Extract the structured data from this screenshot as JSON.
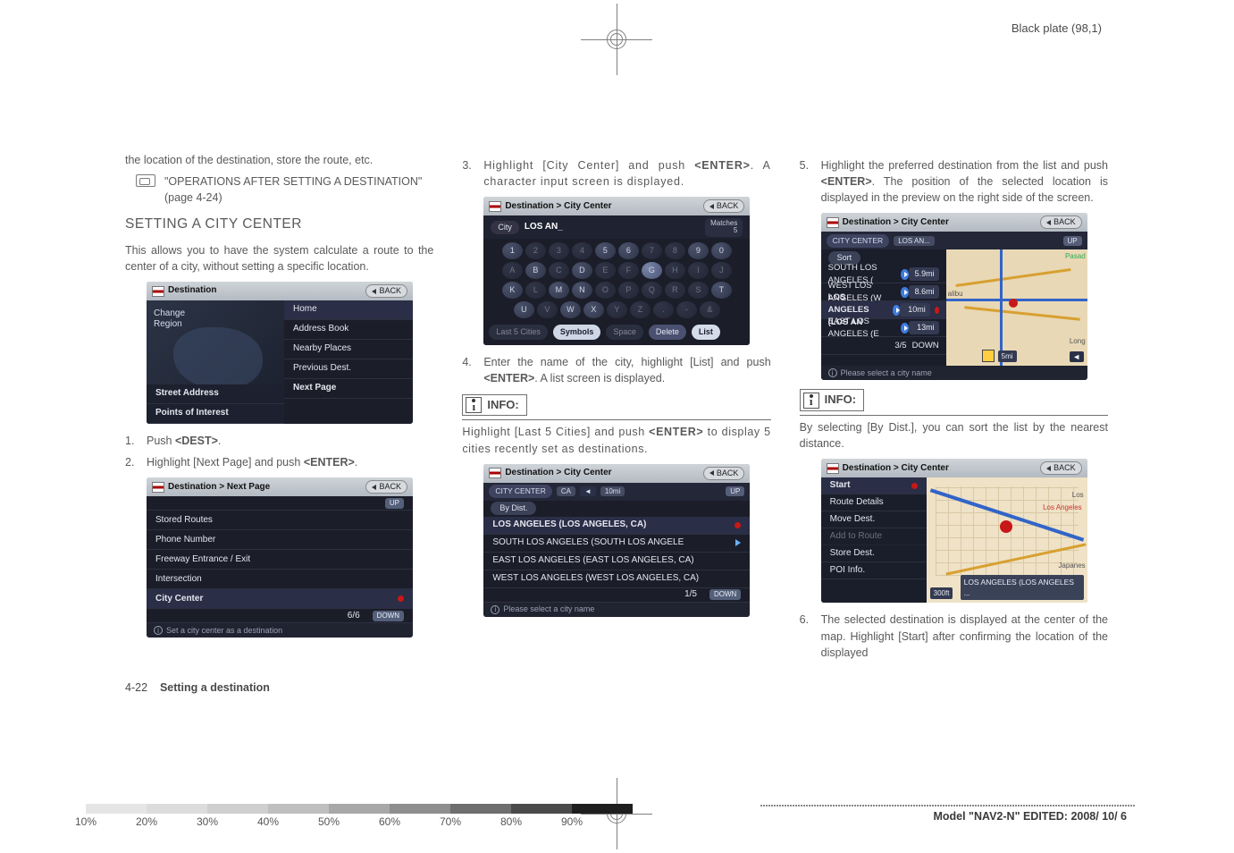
{
  "header": {
    "plate": "Black plate (98,1)"
  },
  "crop": {
    "reg_outer": 22,
    "reg_inner": 14
  },
  "col1": {
    "lead_para": "the location of the destination, store the route, etc.",
    "ref_text": "\"OPERATIONS AFTER SETTING A DESTINATION\" (page 4-24)",
    "h2": "SETTING A CITY CENTER",
    "intro": "This allows you to have the system calculate a route to the center of a city, without setting a specific location.",
    "ss1": {
      "title": "Destination",
      "back": "BACK",
      "left": {
        "change": "Change",
        "region": "Region"
      },
      "right": [
        "Home",
        "Address Book",
        "Nearby Places",
        "Previous Dest.",
        "Next Page"
      ],
      "left2": [
        "Street Address",
        "Points of Interest"
      ]
    },
    "step1": "Push <DEST>.",
    "step2": "Highlight [Next Page] and push <ENTER>.",
    "ss2": {
      "title": "Destination > Next Page",
      "back": "BACK",
      "up": "UP",
      "items": [
        "Stored Routes",
        "Phone Number",
        "Freeway Entrance / Exit",
        "Intersection",
        "City Center"
      ],
      "page": "6/6",
      "down": "DOWN",
      "hint": "Set a city center as a destination"
    }
  },
  "col2": {
    "step3": "Highlight [City Center] and push <ENTER>. A character input screen is displayed.",
    "ss3": {
      "title": "Destination > City Center",
      "back": "BACK",
      "city_lbl": "City",
      "city_val": "LOS AN_",
      "matches_lbl": "Matches",
      "matches_val": "5",
      "row1": [
        "1",
        "2",
        "3",
        "4",
        "5",
        "6",
        "7",
        "8",
        "9",
        "0"
      ],
      "row2": [
        "A",
        "B",
        "C",
        "D",
        "E",
        "F",
        "G",
        "H",
        "I",
        "J"
      ],
      "row3": [
        "K",
        "L",
        "M",
        "N",
        "O",
        "P",
        "Q",
        "R",
        "S",
        "T"
      ],
      "row4": [
        "U",
        "V",
        "W",
        "X",
        "Y",
        "Z",
        ".",
        "-",
        "&"
      ],
      "bottom": {
        "last5": "Last 5 Cities",
        "symbols": "Symbols",
        "space": "Space",
        "delete": "Delete",
        "list": "List"
      }
    },
    "step4": "Enter the name of the city, highlight [List] and push <ENTER>. A list screen is displayed.",
    "info_lbl": "INFO:",
    "info_body": "Highlight [Last 5 Cities] and push <ENTER> to display 5 cities recently set as destinations.",
    "ss4": {
      "title": "Destination > City Center",
      "back": "BACK",
      "head": {
        "cc": "CITY CENTER",
        "ca": "CA",
        "mi": "10mi",
        "up": "UP"
      },
      "bydist": "By Dist.",
      "rows": [
        "LOS ANGELES (LOS ANGELES, CA)",
        "SOUTH LOS ANGELES (SOUTH LOS ANGELE",
        "EAST LOS ANGELES (EAST LOS ANGELES, CA)",
        "WEST LOS ANGELES (WEST LOS ANGELES, CA)"
      ],
      "page": "1/5",
      "down": "DOWN",
      "hint": "Please select a city name"
    }
  },
  "col3": {
    "step5": "Highlight the preferred destination from the list and push <ENTER>. The position of the selected location is displayed in the preview on the right side of the screen.",
    "ss5": {
      "title": "Destination > City Center",
      "back": "BACK",
      "head": {
        "cc": "CITY CENTER",
        "los": "LOS AN...",
        "up": "UP"
      },
      "sort": "Sort",
      "rows": [
        {
          "t": "SOUTH LOS ANGELES (",
          "d": "5.9mi"
        },
        {
          "t": "WEST LOS ANGELES (W",
          "d": "8.6mi"
        },
        {
          "t": "LOS ANGELES (LOS AN",
          "d": "10mi"
        },
        {
          "t": "EAST LOS ANGELES (E",
          "d": "13mi"
        }
      ],
      "page": "3/5",
      "down": "DOWN",
      "ruler": "5mi",
      "hint": "Please select a city name",
      "map_labels": {
        "pasad": "Pasad",
        "alibu": "alibu",
        "long": "Long"
      }
    },
    "info_lbl": "INFO:",
    "info_body": "By selecting [By Dist.], you can sort the list by the nearest distance.",
    "ss6": {
      "title": "Destination > City Center",
      "back": "BACK",
      "menu": [
        "Start",
        "Route Details",
        "Move Dest.",
        "Add to Route",
        "Store Dest.",
        "POI Info."
      ],
      "ruler": "300ft",
      "banner": "LOS ANGELES (LOS ANGELES ...",
      "map_labels": {
        "la": "Los Angeles",
        "japanes": "Japanes",
        "los": "Los"
      }
    },
    "step6": "The selected destination is displayed at the center of the map. Highlight [Start] after confirming the location of the displayed"
  },
  "footer": {
    "page": "4-22",
    "section": "Setting a destination",
    "model": "Model \"NAV2-N\"   EDITED:  2008/ 10/ 6",
    "pct": [
      "10%",
      "20%",
      "30%",
      "40%",
      "50%",
      "60%",
      "70%",
      "80%",
      "90%"
    ],
    "pct_colors": [
      "#e5e5e5",
      "#dcdcdc",
      "#cfcfcf",
      "#bfbfbf",
      "#a8a8a8",
      "#8e8e8e",
      "#6e6e6e",
      "#4a4a4a",
      "#1e1e1e"
    ]
  }
}
